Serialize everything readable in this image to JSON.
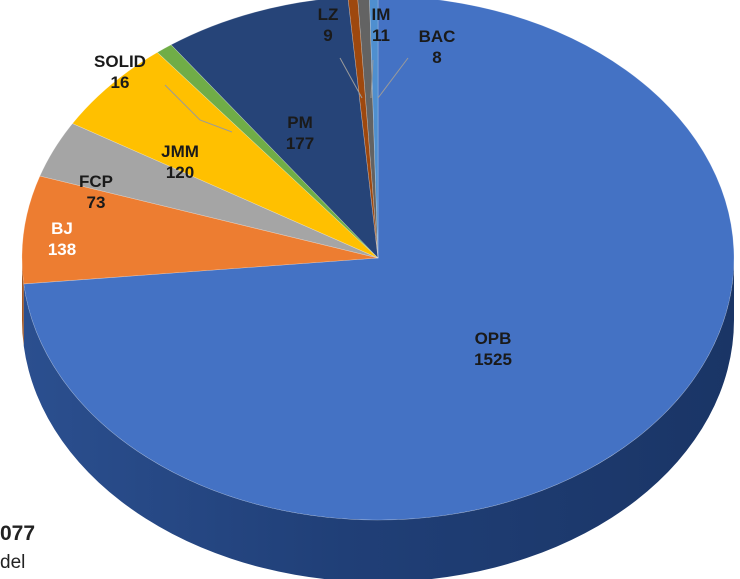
{
  "chart_data": {
    "type": "pie",
    "title": "",
    "style": "3d",
    "categories": [
      "OPB",
      "BJ",
      "FCP",
      "JMM",
      "SOLID",
      "PM",
      "LZ",
      "IM",
      "BAC"
    ],
    "values": [
      1525,
      138,
      73,
      120,
      16,
      177,
      9,
      11,
      8
    ],
    "colors": [
      "#4472C4",
      "#ED7D31",
      "#A5A5A5",
      "#FFC000",
      "#70AD47",
      "#264478",
      "#9E480E",
      "#636363",
      "#4F8FCF"
    ],
    "data_labels": [
      {
        "name": "OPB",
        "value": "1525"
      },
      {
        "name": "BJ",
        "value": "138"
      },
      {
        "name": "FCP",
        "value": "73"
      },
      {
        "name": "JMM",
        "value": "120"
      },
      {
        "name": "SOLID",
        "value": "16"
      },
      {
        "name": "PM",
        "value": "177"
      },
      {
        "name": "LZ",
        "value": "9"
      },
      {
        "name": "IM",
        "value": "11"
      },
      {
        "name": "BAC",
        "value": "8"
      }
    ]
  },
  "page_text": {
    "partial_number": "077",
    "partial_word": "del"
  }
}
